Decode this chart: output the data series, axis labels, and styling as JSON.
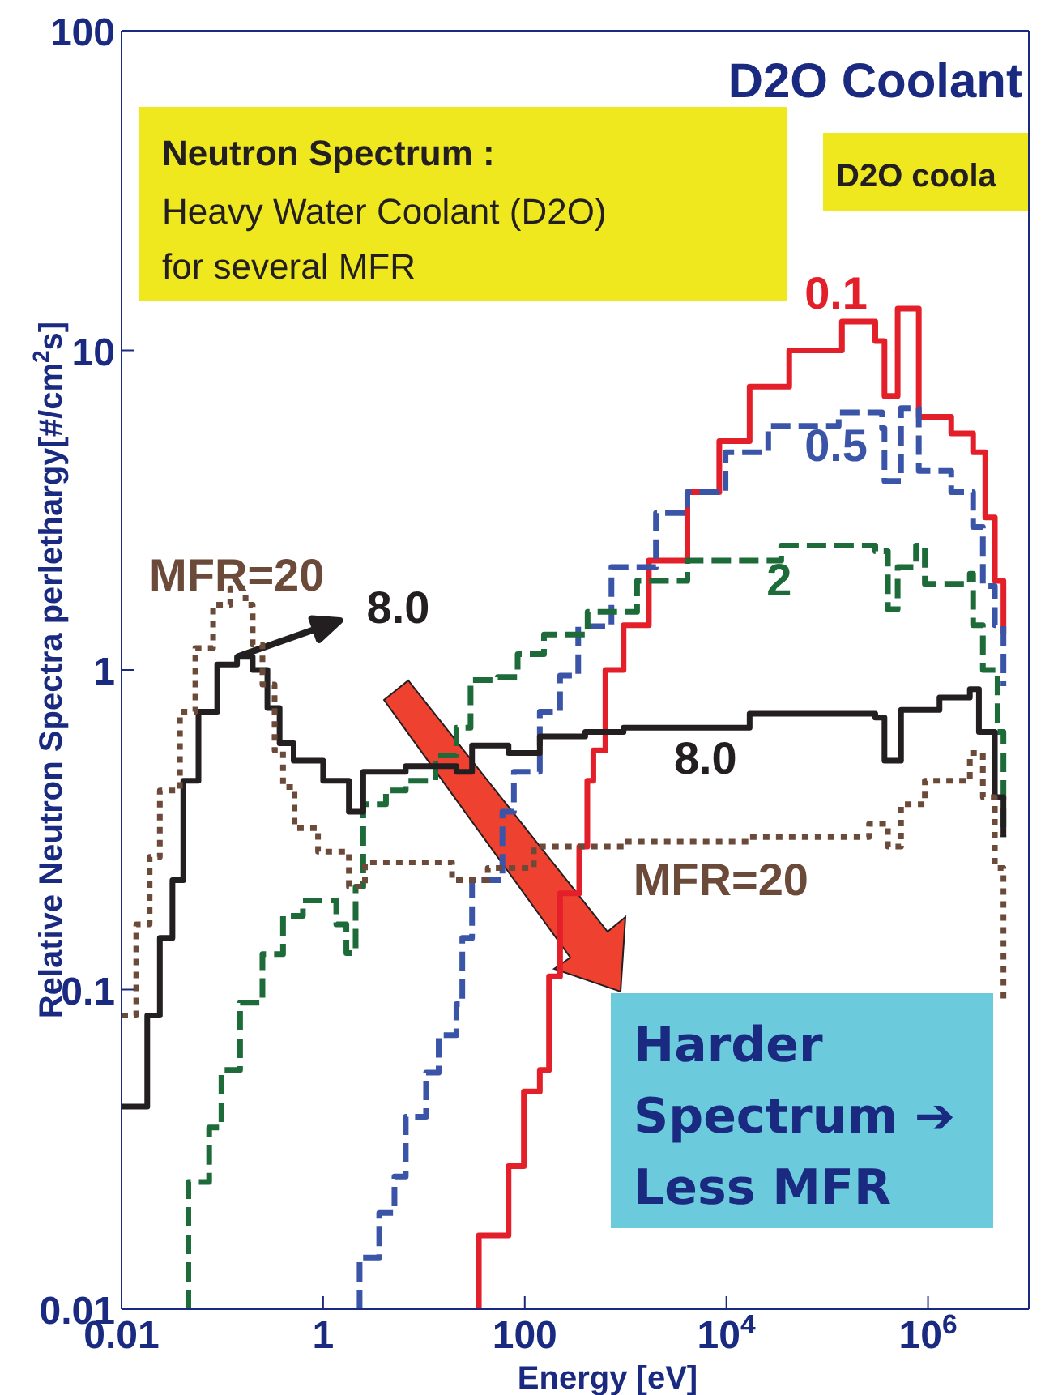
{
  "chart_data": {
    "type": "step",
    "title": "D2O Coolant",
    "xlabel": "Energy [eV]",
    "ylabel": "Relative Neutron Spectra perlethargy[#/cm$^{2}$s]",
    "log": "xy",
    "xlim": [
      0.01,
      10000000
    ],
    "xticks": [
      0.01,
      1,
      100,
      {
        "value": 10000,
        "label": "10$^{4}$"
      },
      {
        "value": 1000000,
        "label": "10$^{6}$"
      }
    ],
    "ylim": [
      0.01,
      100
    ],
    "yticks": [
      0.01,
      0.1,
      1,
      10,
      100
    ],
    "grid": false,
    "legend": false,
    "marker": "none",
    "series": [
      {
        "name": "0.1",
        "color": "#e3202a",
        "line_style": "solid",
        "x": [
          35,
          35,
          69,
          98,
          141,
          174,
          224,
          347,
          417,
          479,
          631,
          955,
          1700,
          4100,
          8500,
          17000,
          42000,
          140000,
          300000,
          370000,
          500000,
          810000,
          1700000,
          2800000,
          3700000,
          4600000,
          5600000
        ],
        "values": [
          0.01,
          0.017,
          0.028,
          0.048,
          0.056,
          0.11,
          0.2,
          0.28,
          0.45,
          0.56,
          1.0,
          1.38,
          2.2,
          3.6,
          5.2,
          7.7,
          10,
          12.3,
          10.7,
          7.2,
          13.5,
          6.2,
          5.5,
          4.8,
          3.0,
          1.9,
          1.3
        ]
      },
      {
        "name": "0.5",
        "color": "#3a55a8",
        "line_style": "dashed",
        "x": [
          2.3,
          2.3,
          3.6,
          5.1,
          6.6,
          10.5,
          14,
          21,
          24,
          30,
          60,
          78,
          141,
          224,
          339,
          724,
          2000,
          4100,
          9800,
          26000,
          130000,
          350000,
          370000,
          540000,
          810000,
          1700000,
          2800000,
          3500000,
          4600000,
          5600000
        ],
        "values": [
          0.01,
          0.0145,
          0.02,
          0.026,
          0.04,
          0.055,
          0.072,
          0.09,
          0.145,
          0.22,
          0.36,
          0.48,
          0.74,
          0.96,
          1.37,
          2.1,
          3.1,
          3.6,
          4.8,
          5.8,
          6.4,
          5.7,
          3.9,
          6.6,
          4.2,
          3.6,
          2.8,
          1.83,
          1.38,
          0.89
        ]
      },
      {
        "name": "2",
        "color": "#1e6b3a",
        "line_style": "dashed",
        "x": [
          0.046,
          0.046,
          0.074,
          0.098,
          0.15,
          0.25,
          0.4,
          0.63,
          1.0,
          1.35,
          1.7,
          2.1,
          2.5,
          4.2,
          6.6,
          13,
          21,
          29,
          54,
          85,
          155,
          420,
          1300,
          4100,
          35000,
          300000,
          400000,
          500000,
          760000,
          930000,
          2600000,
          2800000,
          3500000,
          4900000,
          5600000
        ],
        "values": [
          0.01,
          0.025,
          0.037,
          0.056,
          0.091,
          0.129,
          0.17,
          0.19,
          0.19,
          0.16,
          0.13,
          0.21,
          0.38,
          0.42,
          0.45,
          0.54,
          0.66,
          0.93,
          0.95,
          1.12,
          1.29,
          1.52,
          1.9,
          2.2,
          2.45,
          2.35,
          1.55,
          2.1,
          2.45,
          1.86,
          2.0,
          1.38,
          1.0,
          0.64,
          0.3
        ]
      },
      {
        "color": "#231f20",
        "line_style": "solid",
        "x": [
          0.01,
          0.018,
          0.024,
          0.032,
          0.041,
          0.058,
          0.089,
          0.14,
          0.2,
          0.28,
          0.37,
          0.51,
          1.0,
          1.8,
          2.5,
          6.6,
          21,
          30,
          69,
          141,
          398,
          955,
          17000,
          300000,
          370000,
          540000,
          1300000,
          2600000,
          3200000,
          4600000,
          5600000
        ],
        "values": [
          0.043,
          0.083,
          0.145,
          0.22,
          0.45,
          0.74,
          1.04,
          1.1,
          1.0,
          0.76,
          0.59,
          0.52,
          0.45,
          0.36,
          0.48,
          0.5,
          0.48,
          0.58,
          0.55,
          0.62,
          0.64,
          0.66,
          0.73,
          0.71,
          0.52,
          0.75,
          0.82,
          0.87,
          0.64,
          0.4,
          0.3
        ]
      },
      {
        "name": "MFR=20",
        "color": "#6b4a3a",
        "line_style": "dotted",
        "x": [
          0.01,
          0.014,
          0.019,
          0.024,
          0.038,
          0.054,
          0.081,
          0.12,
          0.17,
          0.2,
          0.25,
          0.33,
          0.4,
          0.52,
          0.89,
          1.8,
          2.6,
          13,
          19,
          43,
          123,
          398,
          955,
          17000,
          260000,
          400000,
          540000,
          930000,
          2600000,
          3500000,
          4600000,
          5600000
        ],
        "values": [
          0.083,
          0.16,
          0.26,
          0.42,
          0.74,
          1.17,
          1.6,
          1.8,
          1.6,
          1.2,
          0.9,
          0.56,
          0.43,
          0.32,
          0.27,
          0.21,
          0.25,
          0.25,
          0.22,
          0.24,
          0.28,
          0.28,
          0.29,
          0.3,
          0.33,
          0.28,
          0.38,
          0.45,
          0.55,
          0.4,
          0.24,
          0.091
        ]
      }
    ],
    "annotations": [
      "Neutron Spectrum :",
      "Heavy Water Coolant (D2O)",
      "for several MFR",
      "D2O coola",
      "Harder",
      "Spectrum ➔",
      "Less MFR",
      {
        "text": "8.0",
        "x": 0.14,
        "y": 1.1
      },
      "MFR=20",
      "8.0"
    ]
  }
}
